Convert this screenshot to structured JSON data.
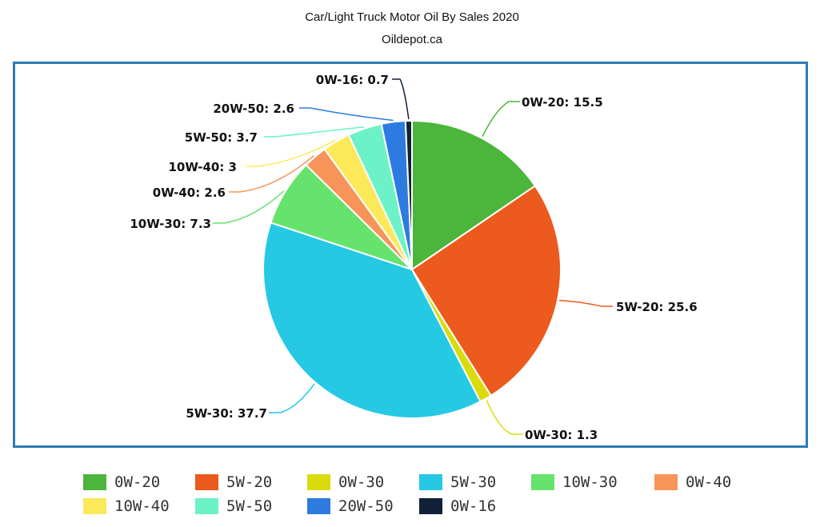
{
  "chart_data": {
    "type": "pie",
    "title": "Car/Light Truck Motor Oil By Sales 2020",
    "subtitle": "Oildepot.ca",
    "slices": [
      {
        "label": "0W-20",
        "value": 15.5,
        "color": "#4cb53b"
      },
      {
        "label": "5W-20",
        "value": 25.6,
        "color": "#ec5a1d"
      },
      {
        "label": "0W-30",
        "value": 1.3,
        "color": "#dbdb0c"
      },
      {
        "label": "5W-30",
        "value": 37.7,
        "color": "#25c9e4"
      },
      {
        "label": "10W-30",
        "value": 7.3,
        "color": "#66e36c"
      },
      {
        "label": "0W-40",
        "value": 2.6,
        "color": "#f7945a"
      },
      {
        "label": "10W-40",
        "value": 3,
        "color": "#fbe95a"
      },
      {
        "label": "5W-50",
        "value": 3.7,
        "color": "#6cf2c6"
      },
      {
        "label": "20W-50",
        "value": 2.6,
        "color": "#2d7be0"
      },
      {
        "label": "0W-16",
        "value": 0.7,
        "color": "#112137"
      }
    ],
    "legend_position": "bottom"
  }
}
